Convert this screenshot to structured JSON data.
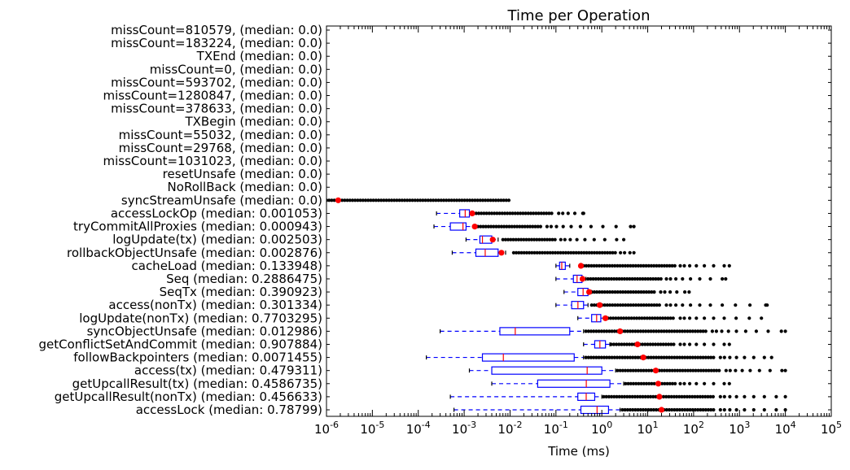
{
  "chart_data": {
    "type": "boxplot",
    "orientation": "horizontal",
    "title": "Time per Operation",
    "xlabel": "Time (ms)",
    "ylabel": "",
    "x_scale": "log",
    "xlim": [
      1e-06,
      100000
    ],
    "x_ticks": [
      {
        "value": 1e-06,
        "base": "10",
        "exp": "-6"
      },
      {
        "value": 1e-05,
        "base": "10",
        "exp": "-5"
      },
      {
        "value": 0.0001,
        "base": "10",
        "exp": "-4"
      },
      {
        "value": 0.001,
        "base": "10",
        "exp": "-3"
      },
      {
        "value": 0.01,
        "base": "10",
        "exp": "-2"
      },
      {
        "value": 0.1,
        "base": "10",
        "exp": "-1"
      },
      {
        "value": 1,
        "base": "10",
        "exp": "0"
      },
      {
        "value": 10,
        "base": "10",
        "exp": "1"
      },
      {
        "value": 100,
        "base": "10",
        "exp": "2"
      },
      {
        "value": 1000,
        "base": "10",
        "exp": "3"
      },
      {
        "value": 10000,
        "base": "10",
        "exp": "4"
      },
      {
        "value": 100000,
        "base": "10",
        "exp": "5"
      }
    ],
    "colors": {
      "box": "#0000ff",
      "median": "#ff0000",
      "mean_marker": "#ff0000",
      "outlier": "#000000",
      "axis": "#000000"
    },
    "categories": [
      {
        "label": "missCount=810579, (median: 0.0)"
      },
      {
        "label": "missCount=183224, (median: 0.0)"
      },
      {
        "label": "TXEnd (median: 0.0)"
      },
      {
        "label": "missCount=0, (median: 0.0)"
      },
      {
        "label": "missCount=593702, (median: 0.0)"
      },
      {
        "label": "missCount=1280847, (median: 0.0)"
      },
      {
        "label": "missCount=378633, (median: 0.0)"
      },
      {
        "label": "TXBegin (median: 0.0)"
      },
      {
        "label": "missCount=55032, (median: 0.0)"
      },
      {
        "label": "missCount=29768, (median: 0.0)"
      },
      {
        "label": "missCount=1031023, (median: 0.0)"
      },
      {
        "label": "resetUnsafe (median: 0.0)"
      },
      {
        "label": "NoRollBack (median: 0.0)"
      },
      {
        "label": "syncStreamUnsafe (median: 0.0)",
        "mean": 1.8e-06,
        "outliers": [
          1e-06,
          0.01
        ]
      },
      {
        "label": "accessLockOp (median: 0.001053)",
        "whisker_low": 0.00025,
        "q1": 0.0008,
        "median": 0.001053,
        "q3": 0.0013,
        "whisker_high": 0.0016,
        "mean": 0.0015,
        "outliers": [
          0.0016,
          0.09,
          0.4
        ]
      },
      {
        "label": "tryCommitAllProxies (median: 0.000943)",
        "whisker_low": 0.00022,
        "q1": 0.0005,
        "median": 0.000943,
        "q3": 0.0011,
        "whisker_high": 0.0017,
        "mean": 0.0017,
        "outliers": [
          0.002,
          0.05,
          5
        ]
      },
      {
        "label": "logUpdate(tx) (median: 0.002503)",
        "whisker_low": 0.0011,
        "q1": 0.0022,
        "median": 0.002503,
        "q3": 0.004,
        "whisker_high": 0.0055,
        "mean": 0.0042,
        "outliers": [
          0.007,
          0.1,
          3
        ]
      },
      {
        "label": "rollbackObjectUnsafe (median: 0.002876)",
        "whisker_low": 0.00055,
        "q1": 0.0018,
        "median": 0.002876,
        "q3": 0.0055,
        "whisker_high": 0.008,
        "mean": 0.0065,
        "outliers": [
          0.012,
          2,
          5
        ]
      },
      {
        "label": "cacheLoad (median: 0.133948)",
        "whisker_low": 0.1,
        "q1": 0.12,
        "median": 0.133948,
        "q3": 0.16,
        "whisker_high": 0.2,
        "mean": 0.35,
        "outliers": [
          0.4,
          40,
          600
        ]
      },
      {
        "label": "Seq (median: 0.2886475)",
        "whisker_low": 0.1,
        "q1": 0.24,
        "median": 0.2886475,
        "q3": 0.37,
        "whisker_high": 0.45,
        "mean": 0.38,
        "outliers": [
          0.5,
          20,
          500
        ]
      },
      {
        "label": "SeqTx (median: 0.390923)",
        "whisker_low": 0.15,
        "q1": 0.3,
        "median": 0.390923,
        "q3": 0.5,
        "whisker_high": 0.6,
        "mean": 0.53,
        "outliers": [
          0.6,
          15,
          80
        ]
      },
      {
        "label": "access(nonTx) (median: 0.301334)",
        "whisker_low": 0.1,
        "q1": 0.22,
        "median": 0.301334,
        "q3": 0.4,
        "whisker_high": 0.5,
        "mean": 0.9,
        "outliers": [
          0.6,
          20,
          4000
        ]
      },
      {
        "label": "logUpdate(nonTx) (median: 0.7703295)",
        "whisker_low": 0.3,
        "q1": 0.6,
        "median": 0.7703295,
        "q3": 0.95,
        "whisker_high": 1.1,
        "mean": 1.2,
        "outliers": [
          1.2,
          40,
          3000
        ]
      },
      {
        "label": "syncObjectUnsafe (median: 0.012986)",
        "whisker_low": 0.0003,
        "q1": 0.006,
        "median": 0.012986,
        "q3": 0.2,
        "whisker_high": 0.4,
        "mean": 2.5,
        "outliers": [
          0.45,
          200,
          10000
        ]
      },
      {
        "label": "getConflictSetAndCommit (median: 0.907884)",
        "whisker_low": 0.4,
        "q1": 0.7,
        "median": 0.907884,
        "q3": 1.2,
        "whisker_high": 1.5,
        "mean": 6,
        "outliers": [
          1.6,
          40,
          600
        ]
      },
      {
        "label": "followBackpointers (median: 0.0071455)",
        "whisker_low": 0.00015,
        "q1": 0.0025,
        "median": 0.0071455,
        "q3": 0.25,
        "whisker_high": 0.4,
        "mean": 8,
        "outliers": [
          0.45,
          300,
          5000
        ]
      },
      {
        "label": "access(tx) (median: 0.479311)",
        "whisker_low": 0.0013,
        "q1": 0.004,
        "median": 0.479311,
        "q3": 1.0,
        "whisker_high": 2.0,
        "mean": 15,
        "outliers": [
          2.2,
          400,
          10000
        ]
      },
      {
        "label": "getUpcallResult(tx) (median: 0.4586735)",
        "whisker_low": 0.004,
        "q1": 0.04,
        "median": 0.4586735,
        "q3": 1.5,
        "whisker_high": 3.0,
        "mean": 17,
        "outliers": [
          3.3,
          40,
          600
        ]
      },
      {
        "label": "getUpcallResult(nonTx) (median: 0.456633)",
        "whisker_low": 0.0005,
        "q1": 0.3,
        "median": 0.456633,
        "q3": 0.7,
        "whisker_high": 1.0,
        "mean": 18,
        "outliers": [
          1.1,
          300,
          10000
        ]
      },
      {
        "label": "accessLock (median: 0.78799)",
        "whisker_low": 0.0006,
        "q1": 0.35,
        "median": 0.78799,
        "q3": 1.4,
        "whisker_high": 2.5,
        "mean": 20,
        "outliers": [
          2.8,
          300,
          10000
        ]
      }
    ]
  }
}
